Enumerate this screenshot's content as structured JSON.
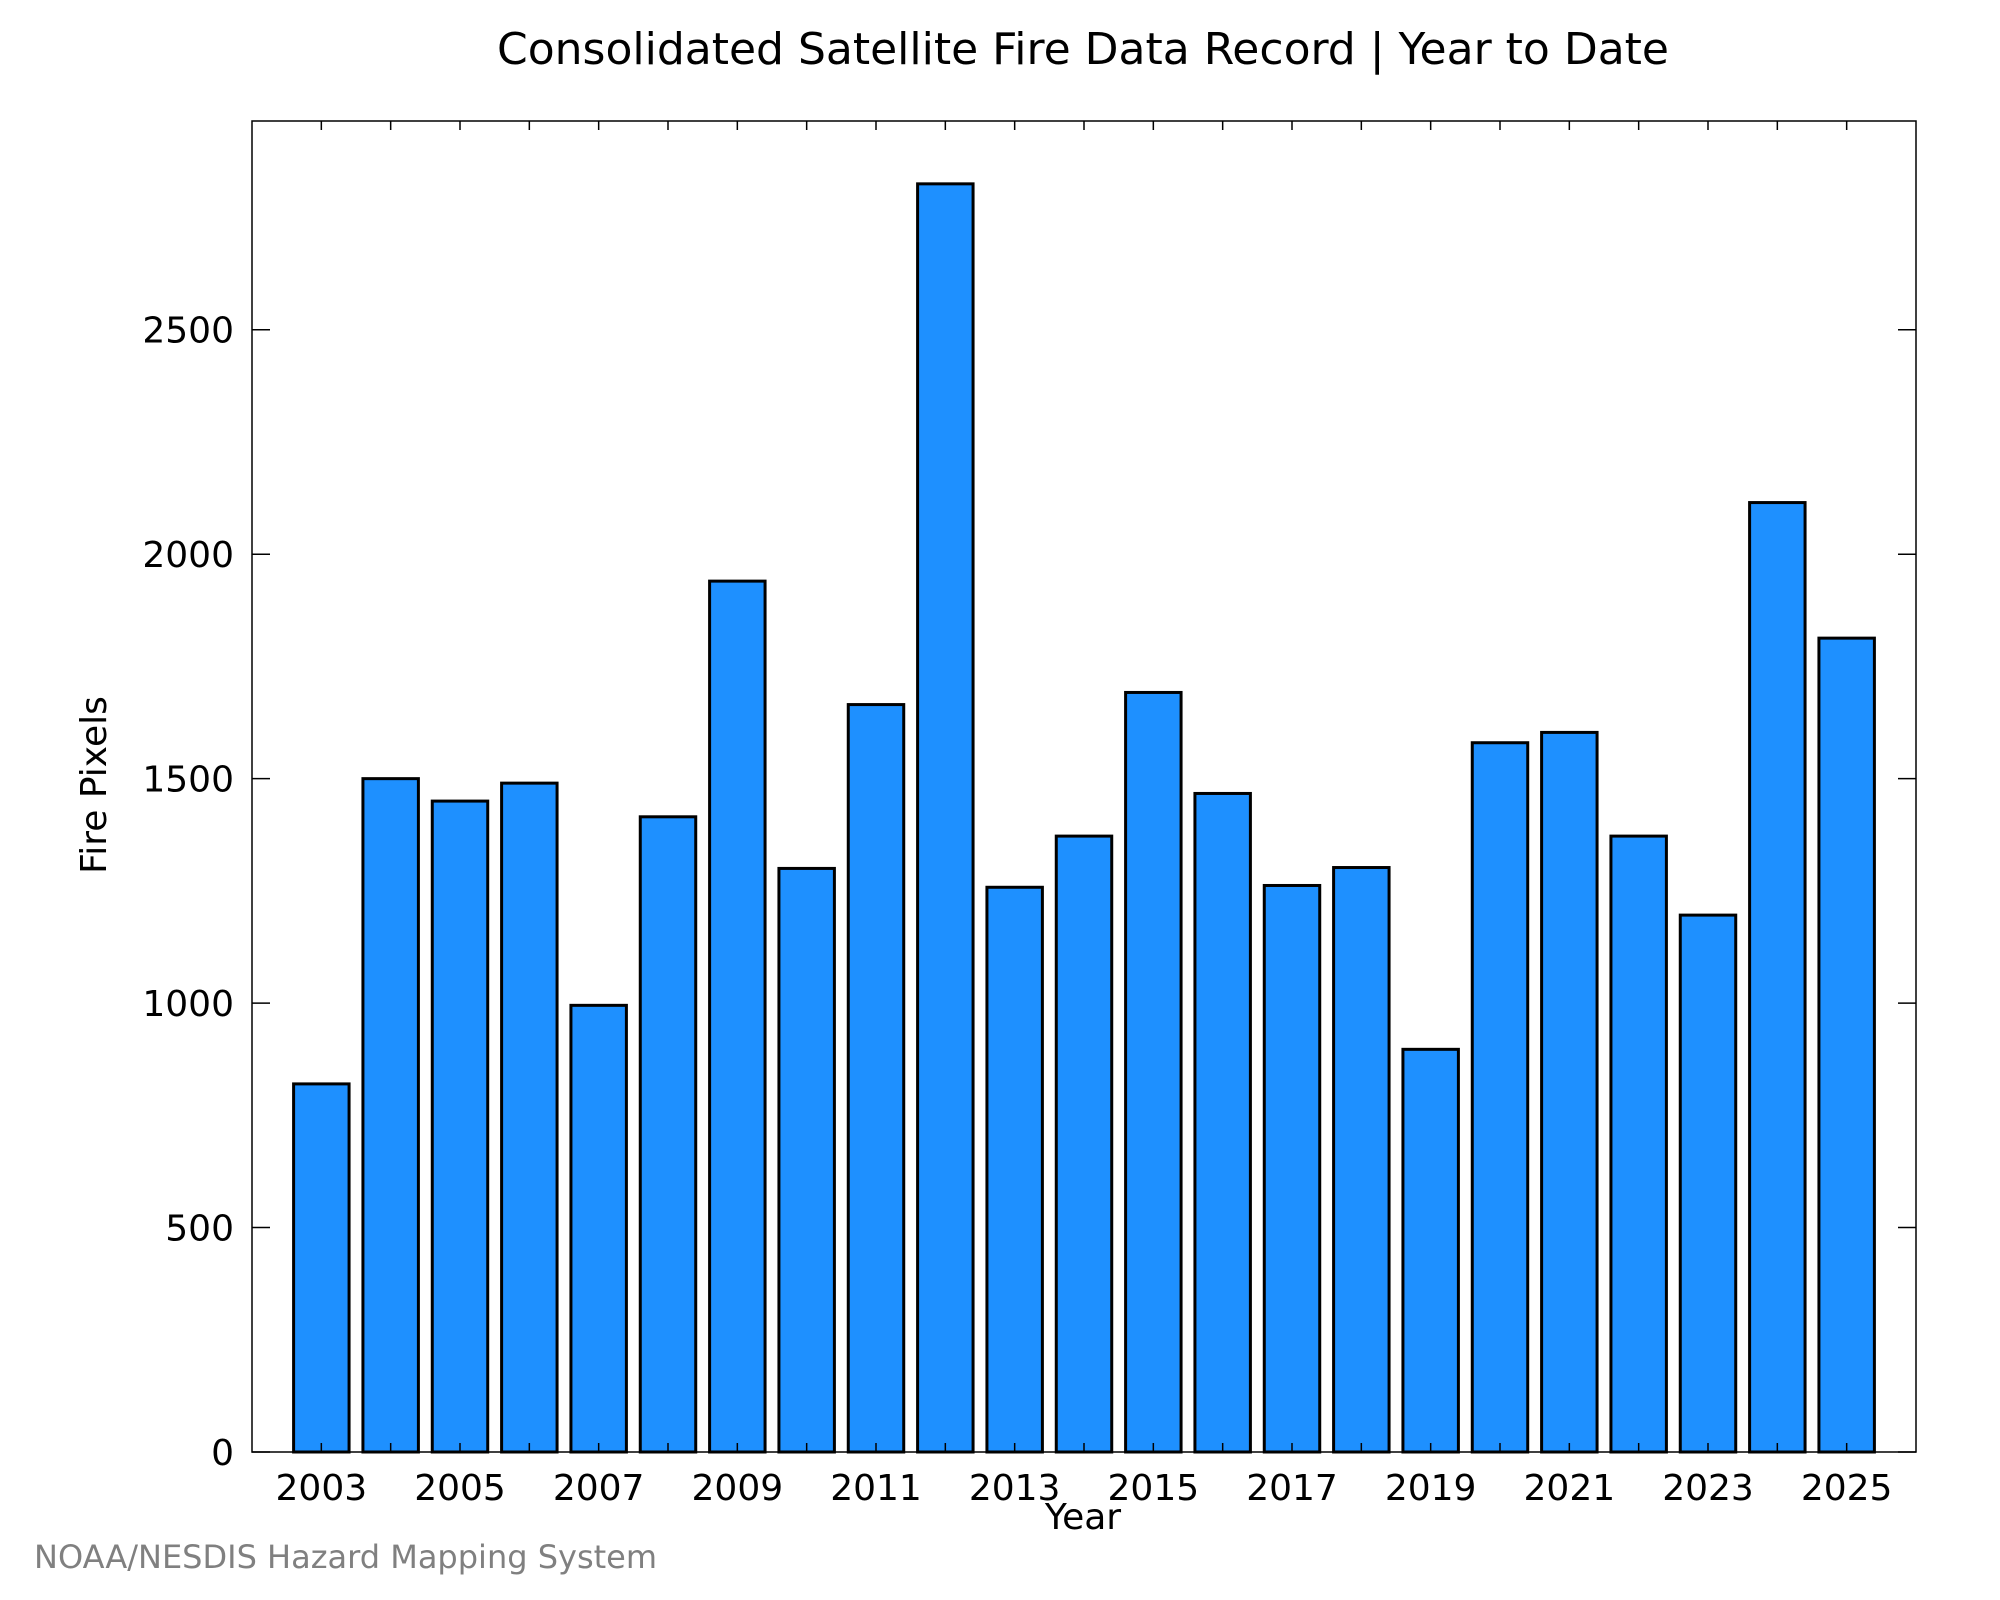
{
  "chart_data": {
    "type": "bar",
    "title": "Consolidated Satellite Fire Data Record | Year to Date",
    "xlabel": "Year",
    "ylabel": "Fire Pixels",
    "categories": [
      2003,
      2004,
      2005,
      2006,
      2007,
      2008,
      2009,
      2010,
      2011,
      2012,
      2013,
      2014,
      2015,
      2016,
      2017,
      2018,
      2019,
      2020,
      2021,
      2022,
      2023,
      2024,
      2025
    ],
    "values": [
      820,
      1500,
      1450,
      1490,
      995,
      1415,
      1940,
      1300,
      1665,
      2825,
      1258,
      1372,
      1692,
      1467,
      1262,
      1302,
      897,
      1580,
      1603,
      1372,
      1196,
      2115,
      1813
    ],
    "ylim": [
      0,
      2965
    ],
    "xlim": [
      2002.0,
      2026.0
    ],
    "yticks": [
      0,
      500,
      1000,
      1500,
      2000,
      2500
    ],
    "xtick_labels": [
      "2003",
      "2005",
      "2007",
      "2009",
      "2011",
      "2013",
      "2015",
      "2017",
      "2019",
      "2021",
      "2023",
      "2025"
    ],
    "bar_color": "#1E90FF",
    "edge_color": "#000000",
    "grid": false
  },
  "footer": {
    "credit": "NOAA/NESDIS Hazard Mapping System",
    "credit_color": "#808080"
  }
}
